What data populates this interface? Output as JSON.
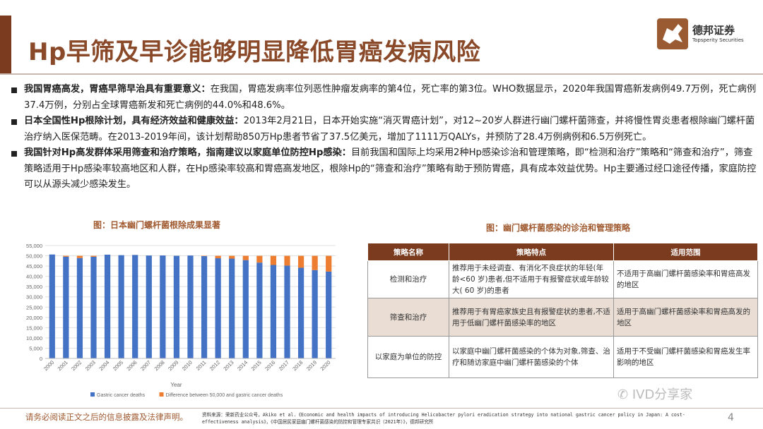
{
  "header": {
    "title": "Hp早筛及早诊能够明显降低胃癌发病风险",
    "logo_cn": "德邦证券",
    "logo_en": "Topsperity Securities"
  },
  "bullets": [
    {
      "bold": "我国胃癌高发，胃癌早筛早治具有重要意义：",
      "text": "在我国，胃癌发病率位列恶性肿瘤发病率的第4位，死亡率的第3位。WHO数据显示，2020年我国胃癌新发病例49.7万例，死亡病例37.4万例，分别占全球胃癌新发和死亡病例的44.0%和48.6%。"
    },
    {
      "bold": "日本全国性Hp根除计划，具有经济效益和健康效益：",
      "text": "2013年2月21日，日本开始实施“消灭胃癌计划”，对12~20岁人群进行幽门螺杆菌筛查，并将慢性胃炎患者根除幽门螺杆菌治疗纳入医保范畴。在2013-2019年间，该计划帮助850万Hp患者节省了37.5亿美元，增加了1111万QALYs，并预防了28.4万例病例和6.5万例死亡。"
    },
    {
      "bold": "我国针对Hp高发群体采用筛查和治疗策略，指南建议以家庭单位防控Hp感染：",
      "text": "目前我国和国际上均采用2种Hp感染诊治和管理策略，即“检测和治疗”策略和“筛查和治疗”，筛查策略适用于Hp感染率较高地区和人群，在Hp感染率较高和胃癌高发地区，根除Hp的“筛查和治疗”策略有助于预防胃癌，具有成本效益优势。Hp主要通过经口途径传播，家庭防控可以从源头减少感染发生。"
    }
  ],
  "chart_caption": "图：日本幽门螺杆菌根除成果显著",
  "table_caption": "图：幽门螺杆菌感染的诊治和管理策略",
  "chart_data": {
    "type": "bar",
    "stacked": true,
    "categories": [
      "2000",
      "2001",
      "2002",
      "2003",
      "2004",
      "2005",
      "2006",
      "2007",
      "2008",
      "2009",
      "2010",
      "2011",
      "2012",
      "2013",
      "2014",
      "2015",
      "2016",
      "2017",
      "2018",
      "2019",
      "2020"
    ],
    "series": [
      {
        "name": "Gastric cancer deaths",
        "color": "#4472c4",
        "values": [
          50650,
          49560,
          48900,
          49530,
          50560,
          50310,
          50420,
          50160,
          50180,
          50010,
          50140,
          49830,
          48800,
          48630,
          47900,
          46680,
          45540,
          45230,
          44190,
          43060,
          42320
        ]
      },
      {
        "name": "Difference between 50,000 and gastric cancer deaths",
        "color": "#ed7d31",
        "values": [
          0,
          440,
          1100,
          470,
          0,
          0,
          0,
          0,
          0,
          0,
          0,
          170,
          1200,
          1370,
          2100,
          3320,
          4460,
          4770,
          5810,
          6940,
          7680
        ]
      }
    ],
    "xlabel": "Year",
    "ylabel": "",
    "ylim": [
      0,
      55000
    ],
    "yticks": [
      "0",
      "5,000",
      "10,000",
      "15,000",
      "20,000",
      "25,000",
      "30,000",
      "35,000",
      "40,000",
      "45,000",
      "50,000",
      "55,000"
    ],
    "legend_position": "bottom",
    "grid": true
  },
  "table": {
    "headers": [
      "策略名称",
      "策略特点",
      "适用范围"
    ],
    "rows": [
      [
        "检测和治疗",
        "推荐用于未经调查、有消化不良症状的年轻(年龄<60 岁)患者,但不适用于有报警症状或年龄较大( 60 岁)的患者",
        "不适用于高幽门螺杆菌感染率和胃癌高发的地区"
      ],
      [
        "筛查和治疗",
        "推荐用于有胃癌家族史且有报警症状的患者,不适用于低幽门螺杆菌感染率的地区",
        "适用于高幽门螺杆菌感染率和胃癌高发的地区"
      ],
      [
        "以家庭为单位的防控",
        "以家庭中幽门螺杆菌感染的个体为对象,筛查、治疗和随访家庭中幽门螺杆菌感染的个体",
        "适用于不受幽门螺杆菌感染和胃癌发生率影响的地区"
      ]
    ]
  },
  "footer": {
    "disclaimer": "请务必阅读正文之后的信息披露及法律声明。",
    "source_line1": "资料来源：荣新药业公众号，Akiko et al.《Economic and health impacts of introducing Helicobacter pylori eradication strategy into national gastric cancer policy in Japan: A cost-",
    "source_line2": "effectiveness analysis》，《中国居民家庭幽门螺杆菌感染的防控和管理专家共识（2021年）》，德邦研究所",
    "page": "4",
    "watermark": "IVD分享家"
  },
  "colors": {
    "brand": "#7a3b1f",
    "title": "#8a4a2a",
    "caption": "#a05a30"
  }
}
